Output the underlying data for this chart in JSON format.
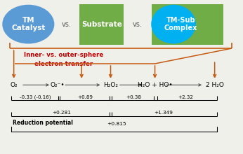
{
  "bg_color": "#f0f0ea",
  "tm_catalyst": {
    "label": "TM\nCatalyst",
    "color": "#5b9bd5"
  },
  "substrate": {
    "label": "Substrate",
    "color": "#70ad47"
  },
  "tm_sub_ellipse": {
    "color": "#00b0f0"
  },
  "tm_sub_rect": {
    "color": "#70ad47"
  },
  "tm_sub_label": "TM-Sub\nComplex",
  "vs_color": "#555555",
  "inner_text": "Inner- vs. outer-sphere\nelectron transfer",
  "inner_text_color": "#c00000",
  "arrow_color": "#c55a11",
  "species": [
    "O₂",
    "O₂⁻•",
    "H₂O₂",
    "H₂O + HO•",
    "2 H₂O"
  ],
  "species_xf": [
    0.055,
    0.235,
    0.455,
    0.638,
    0.885
  ],
  "step_vals": [
    "-0.33 (-0.16)",
    "+0.89",
    "+0.38",
    "+2.32"
  ],
  "bracket1_val": "+0.281",
  "bracket2_val": "+1.349",
  "total_val": "+0.815",
  "total_label": "Reduction potential"
}
